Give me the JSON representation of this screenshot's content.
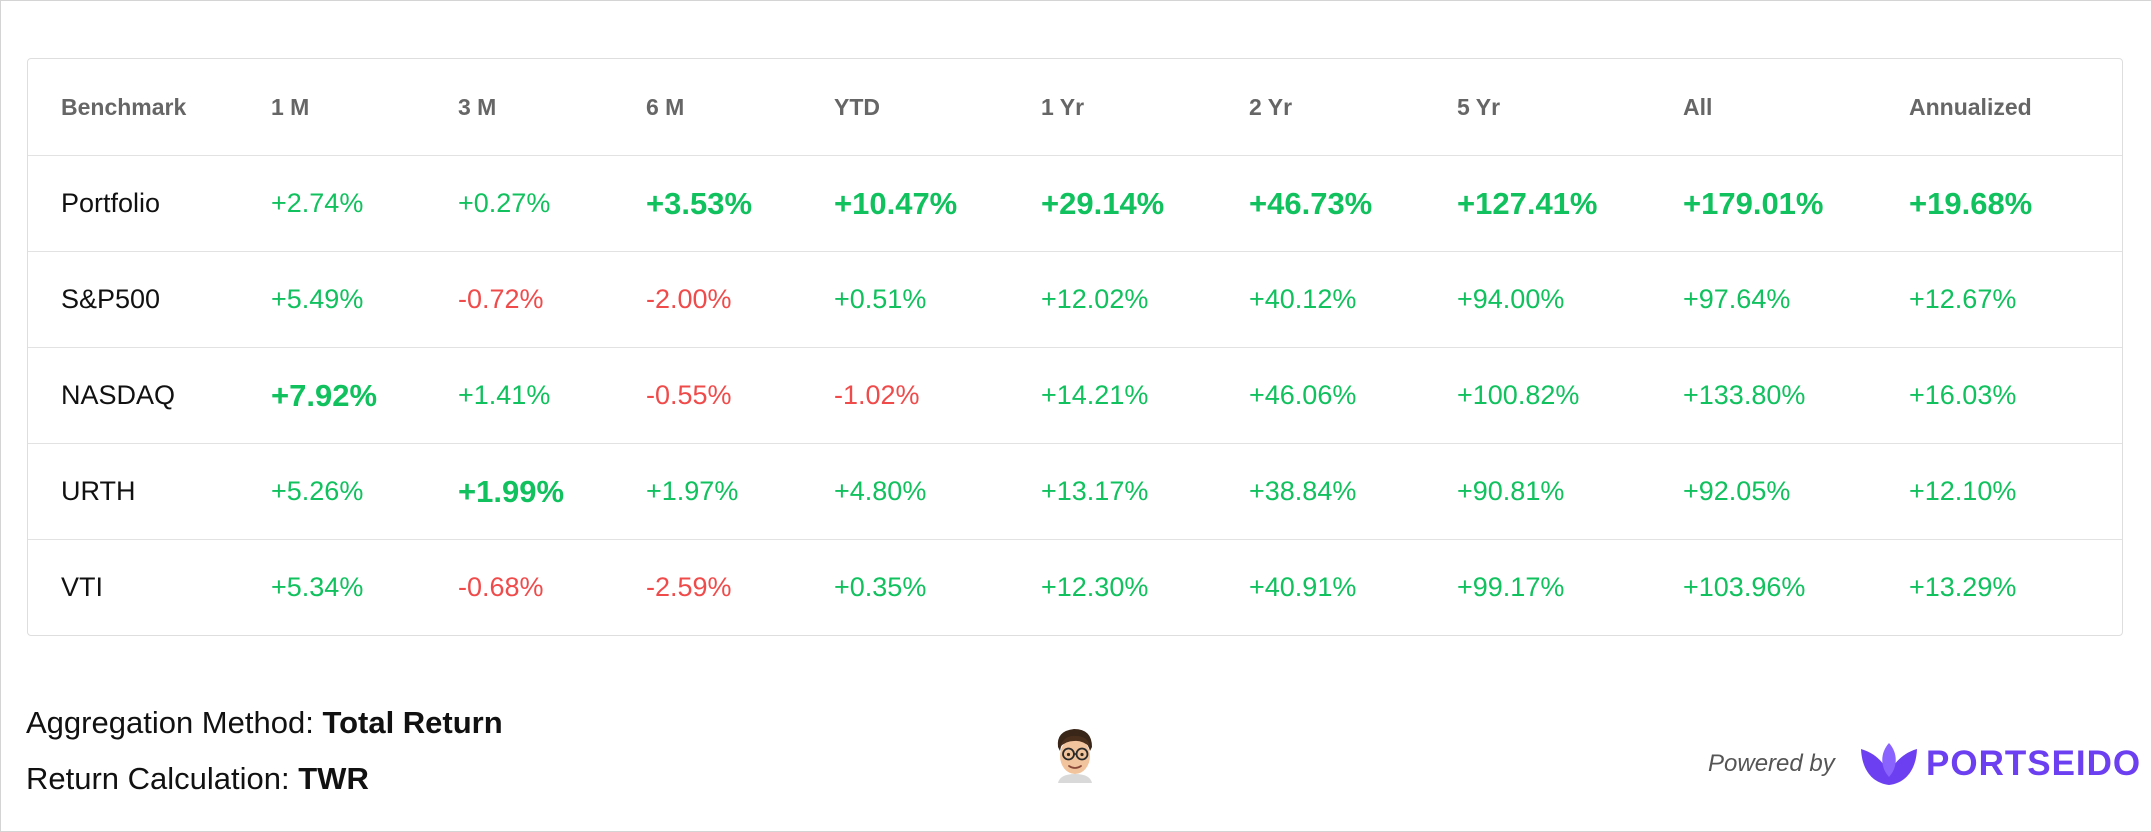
{
  "table": {
    "columns": [
      "Benchmark",
      "1 M",
      "3 M",
      "6 M",
      "YTD",
      "1 Yr",
      "2 Yr",
      "5 Yr",
      "All",
      "Annualized"
    ],
    "rows": [
      {
        "name": "Portfolio",
        "values": [
          "+2.74%",
          "+0.27%",
          "+3.53%",
          "+10.47%",
          "+29.14%",
          "+46.73%",
          "+127.41%",
          "+179.01%",
          "+19.68%"
        ]
      },
      {
        "name": "S&P500",
        "values": [
          "+5.49%",
          "-0.72%",
          "-2.00%",
          "+0.51%",
          "+12.02%",
          "+40.12%",
          "+94.00%",
          "+97.64%",
          "+12.67%"
        ]
      },
      {
        "name": "NASDAQ",
        "values": [
          "+7.92%",
          "+1.41%",
          "-0.55%",
          "-1.02%",
          "+14.21%",
          "+46.06%",
          "+100.82%",
          "+133.80%",
          "+16.03%"
        ]
      },
      {
        "name": "URTH",
        "values": [
          "+5.26%",
          "+1.99%",
          "+1.97%",
          "+4.80%",
          "+13.17%",
          "+38.84%",
          "+90.81%",
          "+92.05%",
          "+12.10%"
        ]
      },
      {
        "name": "VTI",
        "values": [
          "+5.34%",
          "-0.68%",
          "-2.59%",
          "+0.35%",
          "+12.30%",
          "+40.91%",
          "+99.17%",
          "+103.96%",
          "+13.29%"
        ]
      }
    ]
  },
  "footer": {
    "aggregation_label": "Aggregation Method: ",
    "aggregation_value": "Total Return",
    "return_calc_label": "Return Calculation: ",
    "return_calc_value": "TWR",
    "powered_by": "Powered by",
    "brand": "PORTSEIDO"
  },
  "colors": {
    "positive": "#10c15e",
    "negative": "#f04b4b",
    "brand": "#6c3ff0"
  },
  "icons": {
    "avatar": "memoji-avatar-icon",
    "logo": "portseido-leaf-logo-icon"
  }
}
